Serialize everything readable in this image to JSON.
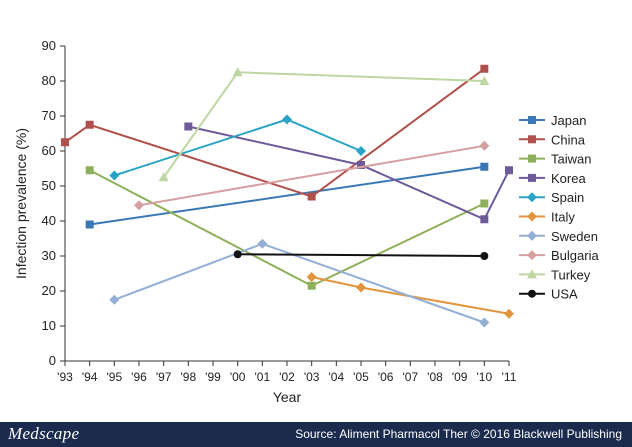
{
  "chart_data": {
    "type": "line",
    "title": "",
    "xlabel": "Year",
    "ylabel": "Infection prevalence (%)",
    "ylim": [
      0,
      90
    ],
    "yticks": [
      0,
      10,
      20,
      30,
      40,
      50,
      60,
      70,
      80,
      90
    ],
    "x_tick_labels": [
      "'93",
      "'94",
      "'95",
      "'96",
      "'97",
      "'98",
      "'99",
      "'00",
      "'01",
      "'02",
      "'03",
      "'04",
      "'05",
      "'06",
      "'07",
      "'08",
      "'09",
      "'10",
      "'11"
    ],
    "x_tick_years": [
      1993,
      1994,
      1995,
      1996,
      1997,
      1998,
      1999,
      2000,
      2001,
      2002,
      2003,
      2004,
      2005,
      2006,
      2007,
      2008,
      2009,
      2010,
      2011
    ],
    "xlim": [
      1993,
      2011
    ],
    "grid": false,
    "legend_position": "right",
    "series": [
      {
        "name": "Japan",
        "color": "#3a78b5",
        "marker": "square",
        "points": [
          [
            1994,
            39
          ],
          [
            2010,
            55.5
          ]
        ]
      },
      {
        "name": "China",
        "color": "#b0504c",
        "marker": "square",
        "points": [
          [
            1993,
            62.5
          ],
          [
            1994,
            67.5
          ],
          [
            2003,
            47
          ],
          [
            2010,
            83.5
          ]
        ]
      },
      {
        "name": "Taiwan",
        "color": "#8fb05a",
        "marker": "square",
        "points": [
          [
            1994,
            54.5
          ],
          [
            2003,
            21.5
          ],
          [
            2010,
            45
          ]
        ]
      },
      {
        "name": "Korea",
        "color": "#6e5a99",
        "marker": "square",
        "points": [
          [
            1998,
            67
          ],
          [
            2005,
            56
          ],
          [
            2010,
            40.5
          ],
          [
            2011,
            54.5
          ]
        ]
      },
      {
        "name": "Spain",
        "color": "#2aa4c4",
        "marker": "diamond",
        "points": [
          [
            1995,
            53
          ],
          [
            2002,
            69
          ],
          [
            2005,
            60
          ]
        ]
      },
      {
        "name": "Italy",
        "color": "#e2953e",
        "marker": "diamond",
        "points": [
          [
            2003,
            24
          ],
          [
            2005,
            21
          ],
          [
            2011,
            13.5
          ]
        ]
      },
      {
        "name": "Sweden",
        "color": "#93afd5",
        "marker": "diamond",
        "points": [
          [
            1995,
            17.5
          ],
          [
            2001,
            33.5
          ],
          [
            2010,
            11
          ]
        ]
      },
      {
        "name": "Bulgaria",
        "color": "#d6a0a0",
        "marker": "diamond",
        "points": [
          [
            1996,
            44.5
          ],
          [
            2010,
            61.5
          ]
        ]
      },
      {
        "name": "Turkey",
        "color": "#bdd6a2",
        "marker": "triangle",
        "points": [
          [
            1997,
            52.5
          ],
          [
            2000,
            82.5
          ],
          [
            2010,
            80
          ]
        ]
      },
      {
        "name": "USA",
        "color": "#111111",
        "marker": "circle",
        "points": [
          [
            2000,
            30.5
          ],
          [
            2010,
            30
          ]
        ]
      }
    ]
  },
  "footer": {
    "logo": "Medscape",
    "source": "Source: Aliment Pharmacol Ther © 2016 Blackwell Publishing"
  }
}
